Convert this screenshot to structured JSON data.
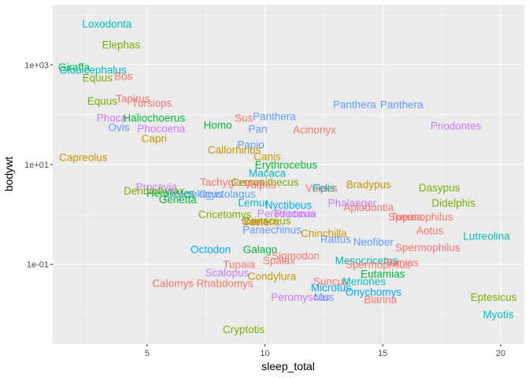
{
  "chart_data": {
    "type": "scatter",
    "style": "text-labels",
    "xlabel": "sleep_total",
    "ylabel": "bodywt",
    "xlim": [
      1.0,
      21.0
    ],
    "ylim": [
      0.0025,
      16000
    ],
    "y_scale": "log10",
    "x_ticks": [
      5,
      10,
      15,
      20
    ],
    "x_tick_labels": [
      "5",
      "10",
      "15",
      "20"
    ],
    "y_ticks": [
      0.1,
      10,
      1000
    ],
    "y_tick_labels": [
      "1e-01",
      "1e+01",
      "1e+03"
    ],
    "grid": true,
    "legend": "none",
    "points": [
      {
        "label": "Loxodonta",
        "x": 3.3,
        "y": 6650,
        "color": "#00BFC4"
      },
      {
        "label": "Elephas",
        "x": 3.9,
        "y": 2550,
        "color": "#7CAE00"
      },
      {
        "label": "Giraffa",
        "x": 1.9,
        "y": 900,
        "color": "#00BA38"
      },
      {
        "label": "Globicephalus",
        "x": 2.7,
        "y": 800,
        "color": "#00BFC4"
      },
      {
        "label": "Equus",
        "x": 2.9,
        "y": 550,
        "color": "#7CAE00"
      },
      {
        "label": "Bos",
        "x": 4.0,
        "y": 600,
        "color": "#F8766D"
      },
      {
        "label": "Equus",
        "x": 3.1,
        "y": 190,
        "color": "#7CAE00"
      },
      {
        "label": "Tapirus",
        "x": 4.4,
        "y": 210,
        "color": "#F8766D"
      },
      {
        "label": "Tursiops",
        "x": 5.2,
        "y": 173,
        "color": "#F8766D"
      },
      {
        "label": "Panthera",
        "x": 13.8,
        "y": 160,
        "color": "#619CFF"
      },
      {
        "label": "Panthera",
        "x": 15.8,
        "y": 162,
        "color": "#619CFF"
      },
      {
        "label": "Phoca",
        "x": 3.5,
        "y": 86,
        "color": "#C77CFF"
      },
      {
        "label": "Haliochoerus",
        "x": 5.3,
        "y": 86,
        "color": "#00BA38"
      },
      {
        "label": "Sus",
        "x": 9.1,
        "y": 86,
        "color": "#F8766D"
      },
      {
        "label": "Panthera",
        "x": 10.4,
        "y": 94,
        "color": "#619CFF"
      },
      {
        "label": "Ovis",
        "x": 3.8,
        "y": 56,
        "color": "#619CFF"
      },
      {
        "label": "Phocoena",
        "x": 5.6,
        "y": 53,
        "color": "#C77CFF"
      },
      {
        "label": "Homo",
        "x": 8.0,
        "y": 62,
        "color": "#00BA38"
      },
      {
        "label": "Pan",
        "x": 9.7,
        "y": 52,
        "color": "#619CFF"
      },
      {
        "label": "Acinonyx",
        "x": 12.1,
        "y": 50,
        "color": "#F8766D"
      },
      {
        "label": "Priodontes",
        "x": 18.1,
        "y": 60,
        "color": "#C77CFF"
      },
      {
        "label": "Capri",
        "x": 5.3,
        "y": 33.5,
        "color": "#CD9600"
      },
      {
        "label": "Papio",
        "x": 9.4,
        "y": 25,
        "color": "#619CFF"
      },
      {
        "label": "Callorhinus",
        "x": 8.7,
        "y": 20,
        "color": "#CD9600"
      },
      {
        "label": "Canis",
        "x": 10.1,
        "y": 14.5,
        "color": "#CD9600"
      },
      {
        "label": "Capreolus",
        "x": 2.3,
        "y": 14,
        "color": "#CD9600"
      },
      {
        "label": "Erythrocebus",
        "x": 10.9,
        "y": 10,
        "color": "#00BA38"
      },
      {
        "label": "Macaca",
        "x": 10.1,
        "y": 6.8,
        "color": "#00BFC4"
      },
      {
        "label": "Tachyglossus",
        "x": 8.6,
        "y": 4.5,
        "color": "#F8766D"
      },
      {
        "label": "Cercopithecus",
        "x": 10.0,
        "y": 4.5,
        "color": "#7CAE00"
      },
      {
        "label": "Vulpes",
        "x": 9.8,
        "y": 4.0,
        "color": "#F8766D"
      },
      {
        "label": "Vulpes",
        "x": 12.4,
        "y": 3.4,
        "color": "#F8766D"
      },
      {
        "label": "Felis",
        "x": 12.5,
        "y": 3.4,
        "color": "#00BFC4"
      },
      {
        "label": "Bradypus",
        "x": 14.4,
        "y": 4.0,
        "color": "#CD9600"
      },
      {
        "label": "Dasypus",
        "x": 17.4,
        "y": 3.5,
        "color": "#7CAE00"
      },
      {
        "label": "Procavia",
        "x": 5.4,
        "y": 3.6,
        "color": "#C77CFF"
      },
      {
        "label": "Dendrohyrax",
        "x": 5.3,
        "y": 3.0,
        "color": "#7CAE00"
      },
      {
        "label": "Herpestes",
        "x": 6.0,
        "y": 2.7,
        "color": "#00BA38"
      },
      {
        "label": "Oryctolagus",
        "x": 7.0,
        "y": 2.6,
        "color": "#619CFF"
      },
      {
        "label": "Oryctolagus",
        "x": 8.4,
        "y": 2.6,
        "color": "#619CFF"
      },
      {
        "label": "Genetta",
        "x": 6.3,
        "y": 2.0,
        "color": "#00BA38"
      },
      {
        "label": "Lemur",
        "x": 9.5,
        "y": 1.75,
        "color": "#00BFC4"
      },
      {
        "label": "Phalanger",
        "x": 13.7,
        "y": 1.7,
        "color": "#C77CFF"
      },
      {
        "label": "Didelphis",
        "x": 18.0,
        "y": 1.7,
        "color": "#7CAE00"
      },
      {
        "label": "Aplodontia",
        "x": 14.4,
        "y": 1.4,
        "color": "#F8766D"
      },
      {
        "label": "Nyctibeus",
        "x": 11.0,
        "y": 1.55,
        "color": "#00A9FF"
      },
      {
        "label": "Perodicticus",
        "x": 10.9,
        "y": 1.05,
        "color": "#C77CFF"
      },
      {
        "label": "Procavia",
        "x": 11.3,
        "y": 1.05,
        "color": "#C77CFF"
      },
      {
        "label": "Cricetomys",
        "x": 8.3,
        "y": 1.0,
        "color": "#7CAE00"
      },
      {
        "label": "Tupaia",
        "x": 16.0,
        "y": 0.9,
        "color": "#F8766D"
      },
      {
        "label": "Spermophilus",
        "x": 16.6,
        "y": 0.9,
        "color": "#F8766D"
      },
      {
        "label": "Cavia",
        "x": 9.6,
        "y": 0.73,
        "color": "#F8766D"
      },
      {
        "label": "Erinaceus",
        "x": 10.1,
        "y": 0.75,
        "color": "#7CAE00"
      },
      {
        "label": "Atelerix",
        "x": 9.9,
        "y": 0.72,
        "color": "#CD9600"
      },
      {
        "label": "Paraechinus",
        "x": 10.3,
        "y": 0.5,
        "color": "#619CFF"
      },
      {
        "label": "Chinchilla",
        "x": 12.5,
        "y": 0.42,
        "color": "#CD9600"
      },
      {
        "label": "Aotus",
        "x": 17.0,
        "y": 0.48,
        "color": "#F8766D"
      },
      {
        "label": "Lutreolina",
        "x": 19.4,
        "y": 0.37,
        "color": "#00BFC4"
      },
      {
        "label": "Neofiber",
        "x": 14.6,
        "y": 0.28,
        "color": "#619CFF"
      },
      {
        "label": "Spermophilus",
        "x": 16.9,
        "y": 0.22,
        "color": "#F8766D"
      },
      {
        "label": "Rattus",
        "x": 13.0,
        "y": 0.32,
        "color": "#619CFF"
      },
      {
        "label": "Octodon",
        "x": 7.7,
        "y": 0.2,
        "color": "#00A9FF"
      },
      {
        "label": "Galago",
        "x": 9.8,
        "y": 0.2,
        "color": "#00BA38"
      },
      {
        "label": "Sigmodon",
        "x": 11.3,
        "y": 0.15,
        "color": "#F8766D"
      },
      {
        "label": "Tupaia",
        "x": 8.9,
        "y": 0.1,
        "color": "#F8766D"
      },
      {
        "label": "Spalax",
        "x": 10.6,
        "y": 0.12,
        "color": "#F8766D"
      },
      {
        "label": "Mesocricetus",
        "x": 14.3,
        "y": 0.12,
        "color": "#00BFC4"
      },
      {
        "label": "Spermophilus",
        "x": 14.8,
        "y": 0.1,
        "color": "#F8766D"
      },
      {
        "label": "Tamias",
        "x": 15.8,
        "y": 0.11,
        "color": "#F8766D"
      },
      {
        "label": "Scalopus",
        "x": 8.4,
        "y": 0.068,
        "color": "#C77CFF"
      },
      {
        "label": "Condylura",
        "x": 10.3,
        "y": 0.058,
        "color": "#CD9600"
      },
      {
        "label": "Eutamias",
        "x": 15.0,
        "y": 0.065,
        "color": "#00BA38"
      },
      {
        "label": "Calomys",
        "x": 6.1,
        "y": 0.042,
        "color": "#F8766D"
      },
      {
        "label": "Rhabdomys",
        "x": 8.3,
        "y": 0.042,
        "color": "#F8766D"
      },
      {
        "label": "Suncus",
        "x": 12.8,
        "y": 0.046,
        "color": "#F8766D"
      },
      {
        "label": "Meriones",
        "x": 14.2,
        "y": 0.046,
        "color": "#00BFC4"
      },
      {
        "label": "Microtus",
        "x": 12.8,
        "y": 0.034,
        "color": "#00A9FF"
      },
      {
        "label": "Onychomys",
        "x": 14.6,
        "y": 0.028,
        "color": "#00A9FF"
      },
      {
        "label": "Peromyscus",
        "x": 11.5,
        "y": 0.022,
        "color": "#C77CFF"
      },
      {
        "label": "Mus",
        "x": 12.5,
        "y": 0.022,
        "color": "#619CFF"
      },
      {
        "label": "Blarina",
        "x": 14.9,
        "y": 0.02,
        "color": "#F8766D"
      },
      {
        "label": "Eptesicus",
        "x": 19.7,
        "y": 0.022,
        "color": "#7CAE00"
      },
      {
        "label": "Myotis",
        "x": 19.9,
        "y": 0.01,
        "color": "#00BFC4"
      },
      {
        "label": "Cryptotis",
        "x": 9.1,
        "y": 0.005,
        "color": "#7CAE00"
      }
    ]
  }
}
